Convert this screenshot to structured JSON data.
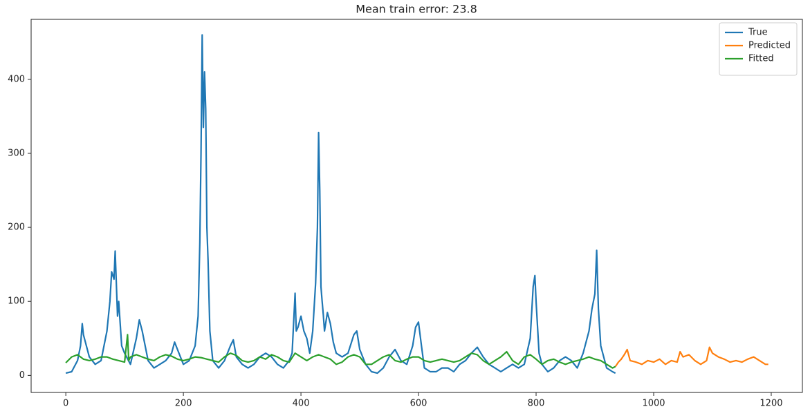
{
  "chart_data": {
    "type": "line",
    "title": "Mean train error: 23.8",
    "xlim": [
      -59,
      1253
    ],
    "ylim": [
      -23,
      481
    ],
    "xticks": [
      0,
      200,
      400,
      600,
      800,
      1000,
      1200
    ],
    "yticks": [
      0,
      100,
      200,
      300,
      400
    ],
    "legend": "upper right",
    "series": [
      {
        "name": "True",
        "color": "#1f77b4",
        "x": [
          0,
          10,
          20,
          25,
          28,
          30,
          40,
          50,
          60,
          70,
          75,
          78,
          82,
          84,
          88,
          90,
          95,
          100,
          110,
          120,
          125,
          130,
          140,
          150,
          160,
          170,
          180,
          185,
          190,
          200,
          210,
          220,
          225,
          228,
          230,
          232,
          234,
          236,
          238,
          240,
          242,
          245,
          250,
          260,
          270,
          280,
          285,
          290,
          300,
          310,
          320,
          330,
          340,
          350,
          360,
          370,
          380,
          385,
          390,
          392,
          395,
          400,
          405,
          410,
          415,
          420,
          425,
          428,
          430,
          432,
          434,
          436,
          438,
          440,
          445,
          450,
          455,
          460,
          470,
          480,
          490,
          495,
          500,
          510,
          520,
          530,
          540,
          550,
          560,
          570,
          580,
          590,
          595,
          600,
          605,
          610,
          620,
          630,
          640,
          650,
          660,
          670,
          680,
          690,
          700,
          710,
          720,
          730,
          740,
          750,
          760,
          770,
          780,
          790,
          795,
          798,
          800,
          805,
          810,
          820,
          830,
          840,
          850,
          860,
          870,
          880,
          890,
          895,
          900,
          903,
          906,
          910,
          920,
          930,
          935
        ],
        "values": [
          3,
          5,
          20,
          40,
          70,
          55,
          25,
          15,
          20,
          60,
          100,
          140,
          130,
          168,
          80,
          100,
          40,
          30,
          15,
          50,
          75,
          60,
          20,
          10,
          15,
          20,
          30,
          45,
          35,
          15,
          20,
          40,
          80,
          180,
          300,
          460,
          335,
          410,
          360,
          200,
          155,
          60,
          20,
          10,
          20,
          40,
          48,
          25,
          15,
          10,
          15,
          25,
          30,
          25,
          15,
          10,
          20,
          30,
          111,
          60,
          65,
          80,
          60,
          50,
          30,
          60,
          125,
          200,
          328,
          250,
          120,
          100,
          82,
          60,
          85,
          70,
          45,
          30,
          25,
          30,
          55,
          60,
          35,
          15,
          5,
          3,
          10,
          25,
          35,
          20,
          15,
          40,
          65,
          72,
          40,
          10,
          5,
          5,
          10,
          10,
          5,
          15,
          20,
          30,
          38,
          25,
          15,
          10,
          5,
          10,
          15,
          10,
          15,
          50,
          120,
          135,
          100,
          30,
          15,
          5,
          10,
          20,
          25,
          20,
          10,
          30,
          60,
          90,
          110,
          169,
          90,
          40,
          10,
          5,
          3
        ]
      },
      {
        "name": "Predicted",
        "color": "#ff7f0e",
        "x": [
          935,
          940,
          945,
          950,
          955,
          960,
          970,
          980,
          990,
          1000,
          1010,
          1020,
          1030,
          1040,
          1045,
          1050,
          1060,
          1070,
          1080,
          1090,
          1095,
          1100,
          1110,
          1120,
          1130,
          1140,
          1150,
          1160,
          1170,
          1180,
          1190,
          1195
        ],
        "values": [
          12,
          18,
          22,
          28,
          35,
          20,
          18,
          15,
          20,
          18,
          22,
          15,
          20,
          18,
          32,
          25,
          28,
          20,
          15,
          20,
          38,
          30,
          25,
          22,
          18,
          20,
          18,
          22,
          25,
          20,
          15,
          15
        ]
      },
      {
        "name": "Fitted",
        "color": "#2ca02c",
        "x": [
          0,
          10,
          20,
          30,
          40,
          50,
          60,
          70,
          80,
          90,
          100,
          105,
          107,
          110,
          120,
          130,
          140,
          150,
          160,
          170,
          180,
          190,
          200,
          210,
          220,
          230,
          240,
          250,
          260,
          270,
          280,
          290,
          300,
          310,
          320,
          330,
          340,
          350,
          360,
          370,
          380,
          390,
          400,
          410,
          420,
          430,
          440,
          450,
          460,
          470,
          480,
          490,
          500,
          510,
          520,
          530,
          540,
          550,
          560,
          570,
          580,
          590,
          600,
          610,
          620,
          630,
          640,
          650,
          660,
          670,
          680,
          690,
          700,
          710,
          720,
          730,
          740,
          750,
          760,
          770,
          780,
          790,
          800,
          810,
          820,
          830,
          840,
          850,
          860,
          870,
          880,
          890,
          900,
          910,
          920,
          930,
          935
        ],
        "values": [
          17,
          25,
          28,
          22,
          20,
          22,
          25,
          25,
          22,
          20,
          18,
          55,
          20,
          25,
          28,
          25,
          22,
          20,
          25,
          28,
          26,
          22,
          20,
          22,
          25,
          24,
          22,
          20,
          18,
          25,
          30,
          27,
          20,
          18,
          20,
          25,
          22,
          28,
          25,
          20,
          18,
          30,
          25,
          20,
          25,
          28,
          25,
          22,
          15,
          18,
          25,
          28,
          25,
          15,
          15,
          20,
          25,
          28,
          20,
          18,
          22,
          25,
          25,
          20,
          18,
          20,
          22,
          20,
          18,
          20,
          25,
          30,
          28,
          20,
          15,
          20,
          25,
          32,
          20,
          15,
          25,
          28,
          22,
          15,
          20,
          22,
          18,
          15,
          18,
          20,
          22,
          25,
          22,
          20,
          15,
          10,
          12
        ]
      }
    ]
  }
}
